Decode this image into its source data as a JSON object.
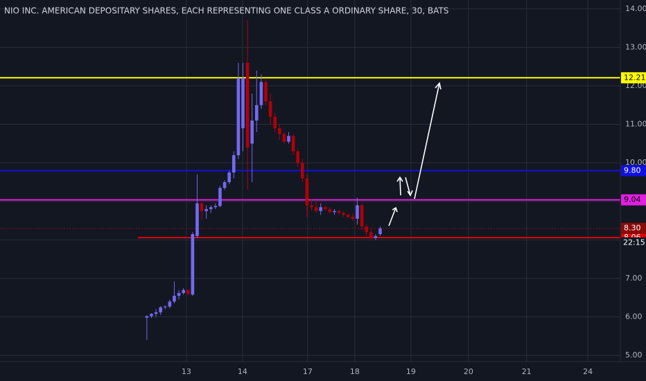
{
  "chart_data": {
    "type": "candlestick",
    "title": "NIO INC. AMERICAN DEPOSITARY SHARES, EACH REPRESENTING ONE CLASS A ORDINARY SHARE, 30, BATS",
    "up_color": "#7469f0",
    "down_color": "#b0000a",
    "open": [
      5.98,
      6.02,
      6.08,
      6.12,
      6.25,
      6.27,
      6.4,
      6.55,
      6.62,
      6.7,
      6.58,
      8.1,
      8.95,
      8.75,
      8.8,
      8.85,
      8.88,
      9.35,
      9.5,
      9.75,
      10.2,
      10.9,
      12.6,
      10.5,
      11.1,
      11.5,
      12.1,
      11.6,
      11.2,
      10.9,
      10.75,
      10.55,
      10.7,
      10.3,
      10.0,
      9.6,
      8.9,
      8.85,
      8.75,
      8.85,
      8.8,
      8.72,
      8.75,
      8.7,
      8.65,
      8.6,
      8.55,
      8.9,
      8.35,
      8.2,
      8.05,
      8.15
    ],
    "high": [
      6.05,
      6.1,
      6.2,
      6.28,
      6.3,
      6.45,
      6.92,
      6.7,
      6.75,
      6.72,
      8.2,
      9.7,
      9.0,
      8.9,
      8.9,
      8.95,
      9.4,
      9.55,
      9.8,
      10.3,
      12.6,
      12.6,
      13.7,
      11.8,
      12.4,
      12.3,
      12.2,
      11.8,
      11.3,
      11.0,
      10.8,
      10.8,
      10.75,
      10.35,
      10.1,
      9.7,
      9.05,
      9.0,
      8.95,
      8.9,
      8.85,
      8.8,
      8.78,
      8.75,
      8.7,
      8.7,
      9.1,
      8.95,
      8.4,
      8.3,
      8.15,
      8.35
    ],
    "low": [
      5.4,
      5.97,
      6.0,
      6.05,
      6.2,
      6.22,
      6.35,
      6.45,
      6.58,
      6.55,
      6.55,
      8.05,
      8.5,
      8.55,
      8.7,
      8.8,
      8.85,
      9.3,
      9.45,
      9.6,
      10.1,
      10.3,
      9.3,
      9.5,
      10.8,
      11.4,
      11.5,
      11.0,
      10.8,
      10.6,
      10.5,
      10.5,
      10.2,
      9.9,
      9.5,
      8.6,
      8.75,
      8.7,
      8.65,
      8.75,
      8.7,
      8.65,
      8.65,
      8.6,
      8.55,
      8.5,
      8.4,
      8.25,
      8.1,
      8.0,
      8.0,
      8.1
    ],
    "close": [
      6.02,
      6.08,
      6.12,
      6.25,
      6.27,
      6.4,
      6.55,
      6.62,
      6.7,
      6.6,
      8.15,
      8.95,
      8.75,
      8.8,
      8.85,
      8.88,
      9.35,
      9.5,
      9.75,
      10.2,
      12.2,
      12.2,
      10.4,
      11.1,
      11.5,
      12.1,
      11.6,
      11.2,
      10.9,
      10.75,
      10.55,
      10.7,
      10.3,
      10.0,
      9.6,
      8.9,
      8.85,
      8.75,
      8.85,
      8.8,
      8.72,
      8.75,
      8.7,
      8.65,
      8.6,
      8.55,
      8.9,
      8.35,
      8.2,
      8.05,
      8.1,
      8.3
    ],
    "xlim": [
      -32.1,
      103.5
    ],
    "xticks": [
      {
        "value": 8.64,
        "label": "13"
      },
      {
        "value": 20.91,
        "label": "14"
      },
      {
        "value": 35.15,
        "label": "17"
      },
      {
        "value": 45.45,
        "label": "18"
      },
      {
        "value": 57.73,
        "label": "19"
      },
      {
        "value": 70.3,
        "label": "20"
      },
      {
        "value": 83.0,
        "label": "21"
      },
      {
        "value": 96.4,
        "label": "24"
      }
    ],
    "ylim": [
      4.84,
      14.23
    ],
    "yticks": [
      {
        "value": 5,
        "label": "5.00"
      },
      {
        "value": 6,
        "label": "6.00"
      },
      {
        "value": 7,
        "label": "7.00"
      },
      {
        "value": 8,
        "label": "8.00"
      },
      {
        "value": 9,
        "label": "9.00"
      },
      {
        "value": 10,
        "label": "10.00"
      },
      {
        "value": 11,
        "label": "11.00"
      },
      {
        "value": 12,
        "label": "12.00"
      },
      {
        "value": 13,
        "label": "13.00"
      },
      {
        "value": 14,
        "label": "14.00"
      }
    ],
    "grid": true,
    "price_lines": [
      {
        "value": 12.21,
        "label": "12.21",
        "color": "#ffff00",
        "text_color": "#000000"
      },
      {
        "value": 9.8,
        "label": "9.80",
        "color": "#1010e0",
        "text_color": "#ffffff"
      },
      {
        "value": 9.04,
        "label": "9.04",
        "color": "#e020e0",
        "text_color": "#000000"
      },
      {
        "value": 8.06,
        "label": "8.06",
        "color": "#e00000",
        "text_color": "#ffffff",
        "start": -2
      }
    ],
    "last_price": {
      "value": 8.3,
      "label": "8.30",
      "countdown": "22:15",
      "color": "#8b0a0a"
    }
  }
}
